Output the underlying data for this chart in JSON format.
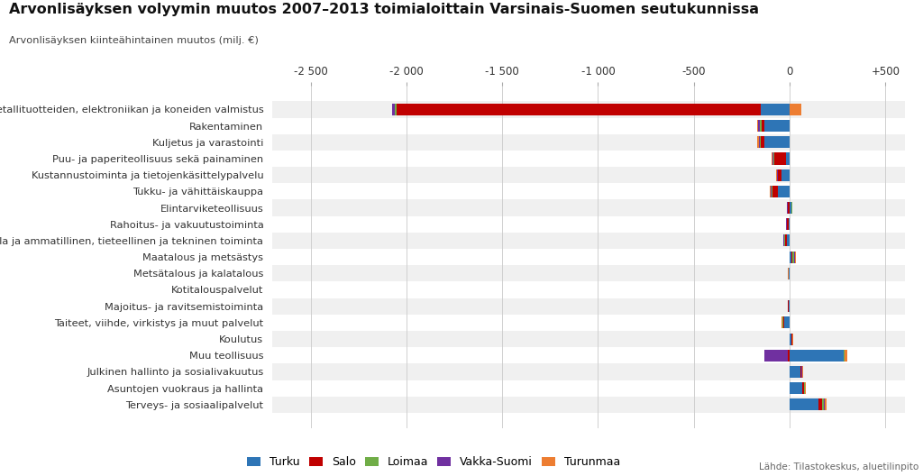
{
  "title": "Arvonlisäyksen volyymin muutos 2007–2013 toimialoittain Varsinais-Suomen seutukunnissa",
  "subtitle": "Arvonlisäyksen kiinteähintainen muutos (milj. €)",
  "source_text": "Lähde: Tilastokeskus, aluetilinpito",
  "categories": [
    "Metallituotteiden, elektroniikan ja koneiden valmistus",
    "Rakentaminen",
    "Kuljetus ja varastointi",
    "Puu- ja paperiteollisuus sekä painaminen",
    "Kustannustoiminta ja tietojenkäsittelypalvelu",
    "Tukku- ja vähittäiskauppa",
    "Elintarviketeollisuus",
    "Rahoitus- ja vakuutustoiminta",
    "Kiinteistöala ja ammatillinen, tieteellinen ja tekninen toiminta",
    "Maatalous ja metsästys",
    "Metsätalous ja kalatalous",
    "Kotitalouspalvelut",
    "Majoitus- ja ravitsemistoiminta",
    "Taiteet, viihde, virkistys ja muut palvelut",
    "Koulutus",
    "Muu teollisuus",
    "Julkinen hallinto ja sosialivakuutus",
    "Asuntojen vuokraus ja hallinta",
    "Terveys- ja sosiaalipalvelut"
  ],
  "regions": [
    "Turku",
    "Salo",
    "Loimaa",
    "Vakka-Suomi",
    "Turunmaa"
  ],
  "colors": [
    "#2e75b6",
    "#c00000",
    "#70ad47",
    "#7030a0",
    "#ed7d31"
  ],
  "bar_data": [
    [
      -150,
      -1900,
      -12,
      -15,
      60
    ],
    [
      -130,
      -18,
      -5,
      -10,
      -8
    ],
    [
      -130,
      -22,
      -5,
      -5,
      -5
    ],
    [
      -20,
      -60,
      -4,
      -5,
      -3
    ],
    [
      -40,
      -20,
      -3,
      -4,
      -3
    ],
    [
      -60,
      -30,
      -5,
      -5,
      -5
    ],
    [
      10,
      -10,
      5,
      -3,
      -2
    ],
    [
      -5,
      -8,
      -2,
      -2,
      -2
    ],
    [
      -15,
      -10,
      -3,
      -3,
      -3
    ],
    [
      10,
      5,
      8,
      5,
      3
    ],
    [
      -3,
      -1,
      -1,
      -1,
      -1
    ],
    [
      0,
      0,
      0,
      1,
      0
    ],
    [
      -5,
      -2,
      -1,
      -1,
      -1
    ],
    [
      -30,
      -5,
      -2,
      -2,
      -2
    ],
    [
      10,
      2,
      1,
      1,
      3
    ],
    [
      280,
      -10,
      5,
      -120,
      15
    ],
    [
      55,
      5,
      2,
      2,
      5
    ],
    [
      65,
      10,
      3,
      3,
      5
    ],
    [
      150,
      20,
      8,
      5,
      10
    ]
  ],
  "xlim": [
    -2700,
    600
  ],
  "xticks": [
    -2500,
    -2000,
    -1500,
    -1000,
    -500,
    0,
    500
  ],
  "xtick_labels": [
    "-2 500",
    "-2 000",
    "-1 500",
    "-1 000",
    "-500",
    "0",
    "+500"
  ],
  "background_color": "#ffffff",
  "row_alt_color": "#f0f0f0",
  "grid_color": "#d0d0d0"
}
